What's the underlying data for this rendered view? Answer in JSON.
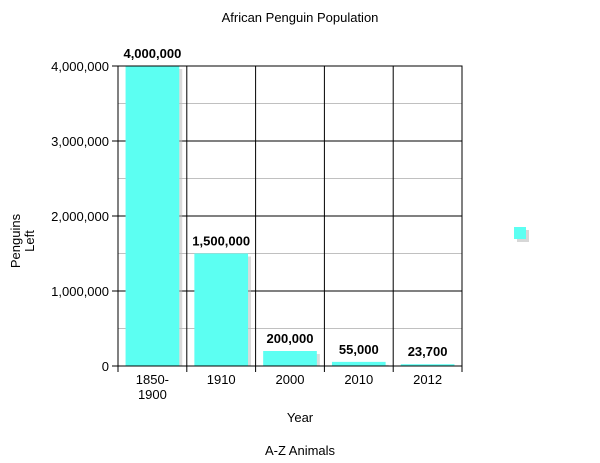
{
  "chart_data": {
    "type": "bar",
    "title": "African Penguin Population",
    "xlabel": "Year",
    "ylabel_lines": [
      "Penguins",
      "Left"
    ],
    "source": "A-Z Animals",
    "categories": [
      {
        "lines": [
          "1850-",
          "1900"
        ]
      },
      {
        "lines": [
          "1910"
        ]
      },
      {
        "lines": [
          "2000"
        ]
      },
      {
        "lines": [
          "2010"
        ]
      },
      {
        "lines": [
          "2012"
        ]
      }
    ],
    "values": [
      4000000,
      1500000,
      200000,
      55000,
      23700
    ],
    "value_labels": [
      "4,000,000",
      "1,500,000",
      "200,000",
      "55,000",
      "23,700"
    ],
    "ylim": [
      0,
      4000000
    ],
    "y_ticks": [
      {
        "value": 0,
        "label": "0"
      },
      {
        "value": 1000000,
        "label": "1,000,000"
      },
      {
        "value": 2000000,
        "label": "2,000,000"
      },
      {
        "value": 3000000,
        "label": "3,000,000"
      },
      {
        "value": 4000000,
        "label": "4,000,000"
      }
    ],
    "minor_gridlines_per_major": 2,
    "grid": true,
    "legend": "right",
    "colors": {
      "bar": "#5cfff2",
      "bar_shadow": "#bdbdbd",
      "major_grid": "#000000",
      "minor_grid": "#c0c0c0"
    }
  }
}
